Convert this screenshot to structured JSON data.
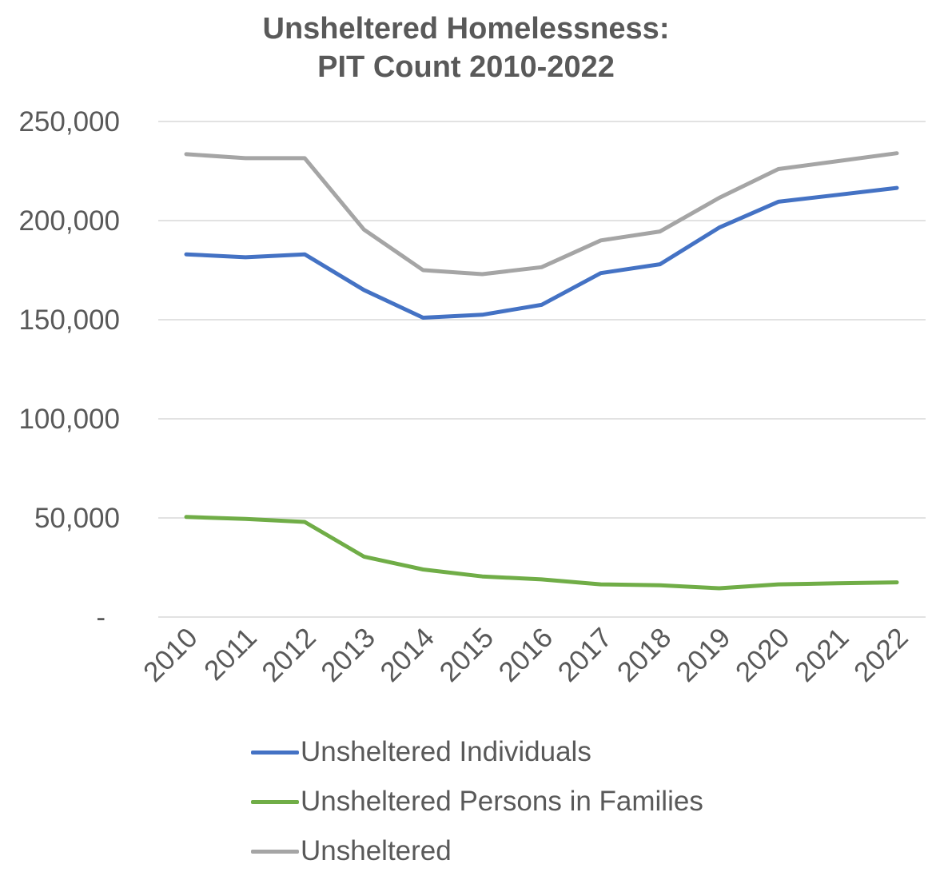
{
  "chart_data": {
    "type": "line",
    "title": [
      "Unsheltered Homelessness:",
      "PIT Count 2010-2022"
    ],
    "xlabel": "",
    "ylabel": "",
    "x": [
      "2010",
      "2011",
      "2012",
      "2013",
      "2014",
      "2015",
      "2016",
      "2017",
      "2018",
      "2019",
      "2020",
      "2021",
      "2022"
    ],
    "ylim": [
      0,
      250000
    ],
    "y_ticks": [
      0,
      50000,
      100000,
      150000,
      200000,
      250000
    ],
    "y_tick_labels": [
      "-",
      "50,000",
      "100,000",
      "150,000",
      "200,000",
      "250,000"
    ],
    "grid": true,
    "legend_position": "bottom",
    "series": [
      {
        "name": "Unsheltered Individuals",
        "color": "#4472C4",
        "values": [
          183000,
          181500,
          183000,
          165000,
          151000,
          152500,
          157500,
          173500,
          178000,
          196500,
          209500,
          213000,
          216500
        ]
      },
      {
        "name": "Unsheltered Persons in Families",
        "color": "#70AD47",
        "values": [
          50500,
          49500,
          48000,
          30500,
          24000,
          20500,
          19000,
          16500,
          16000,
          14500,
          16500,
          17000,
          17500
        ]
      },
      {
        "name": "Unsheltered",
        "color": "#A5A5A5",
        "values": [
          233500,
          231500,
          231500,
          195500,
          175000,
          173000,
          176500,
          190000,
          194500,
          211500,
          226000,
          230000,
          234000
        ]
      }
    ]
  }
}
